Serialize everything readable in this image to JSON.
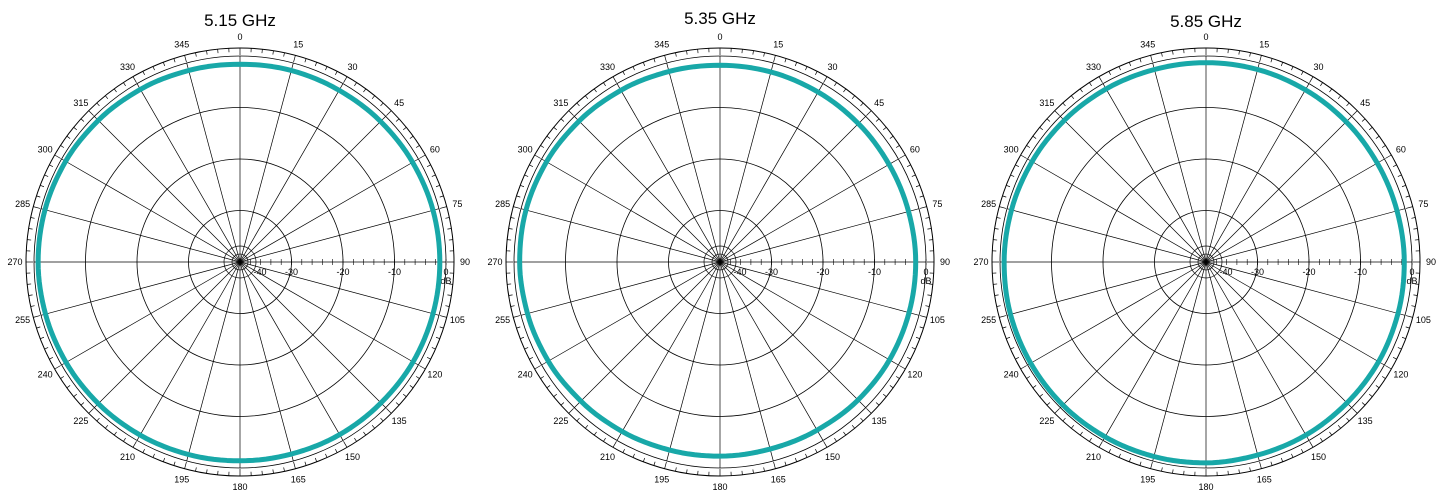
{
  "chart_data": [
    {
      "type": "polar",
      "title": "5.15 GHz",
      "unit": "dB",
      "r_range": [
        -40,
        0
      ],
      "r_ticks": [
        -40,
        -30,
        -20,
        -10,
        0
      ],
      "theta_ticks": [
        0,
        15,
        30,
        45,
        60,
        75,
        90,
        105,
        120,
        135,
        150,
        165,
        180,
        195,
        210,
        225,
        240,
        255,
        270,
        285,
        300,
        315,
        330,
        345
      ],
      "theta_direction": "clockwise",
      "theta_zero": "top",
      "series": [
        {
          "color": "#18a8a8",
          "theta": [
            0,
            15,
            30,
            45,
            60,
            75,
            90,
            105,
            120,
            135,
            150,
            165,
            180,
            195,
            210,
            225,
            240,
            255,
            270,
            285,
            300,
            315,
            330,
            345
          ],
          "values": [
            -1.6,
            -1.5,
            -1.5,
            -1.4,
            -1.3,
            -1.2,
            -1.2,
            -1.2,
            -1.2,
            -1.3,
            -1.3,
            -1.4,
            -1.4,
            -1.3,
            -1.2,
            -1.1,
            -1.0,
            -0.9,
            -0.8,
            -0.8,
            -0.9,
            -1.1,
            -1.3,
            -1.5
          ]
        }
      ]
    },
    {
      "type": "polar",
      "title": "5.35 GHz",
      "unit": "dB",
      "r_range": [
        -40,
        0
      ],
      "r_ticks": [
        -40,
        -30,
        -20,
        -10,
        0
      ],
      "theta_ticks": [
        0,
        15,
        30,
        45,
        60,
        75,
        90,
        105,
        120,
        135,
        150,
        165,
        180,
        195,
        210,
        225,
        240,
        255,
        270,
        285,
        300,
        315,
        330,
        345
      ],
      "theta_direction": "clockwise",
      "theta_zero": "top",
      "series": [
        {
          "color": "#18a8a8",
          "theta": [
            0,
            15,
            30,
            45,
            60,
            75,
            90,
            105,
            120,
            135,
            150,
            165,
            180,
            195,
            210,
            225,
            240,
            255,
            270,
            285,
            300,
            315,
            330,
            345
          ],
          "values": [
            -1.8,
            -1.8,
            -1.9,
            -2.0,
            -2.1,
            -2.1,
            -2.0,
            -2.0,
            -2.0,
            -2.1,
            -2.3,
            -2.4,
            -2.3,
            -2.2,
            -2.0,
            -1.8,
            -1.5,
            -1.3,
            -1.1,
            -1.0,
            -1.1,
            -1.3,
            -1.5,
            -1.7
          ]
        }
      ]
    },
    {
      "type": "polar",
      "title": "5.85 GHz",
      "unit": "dB",
      "r_range": [
        -40,
        0
      ],
      "r_ticks": [
        -40,
        -30,
        -20,
        -10,
        0
      ],
      "theta_ticks": [
        0,
        15,
        30,
        45,
        60,
        75,
        90,
        105,
        120,
        135,
        150,
        165,
        180,
        195,
        210,
        225,
        240,
        255,
        270,
        285,
        300,
        315,
        330,
        345
      ],
      "theta_direction": "clockwise",
      "theta_zero": "top",
      "series": [
        {
          "color": "#18a8a8",
          "theta": [
            0,
            15,
            30,
            45,
            60,
            75,
            90,
            105,
            120,
            135,
            150,
            165,
            180,
            195,
            210,
            225,
            240,
            255,
            270,
            285,
            300,
            315,
            330,
            345
          ],
          "values": [
            -1.3,
            -1.3,
            -1.4,
            -1.5,
            -1.6,
            -1.6,
            -1.5,
            -1.4,
            -1.3,
            -1.3,
            -1.2,
            -1.2,
            -1.0,
            -0.9,
            -0.8,
            -0.7,
            -0.7,
            -0.7,
            -0.8,
            -0.9,
            -1.0,
            -1.1,
            -1.2,
            -1.3
          ]
        }
      ]
    }
  ]
}
